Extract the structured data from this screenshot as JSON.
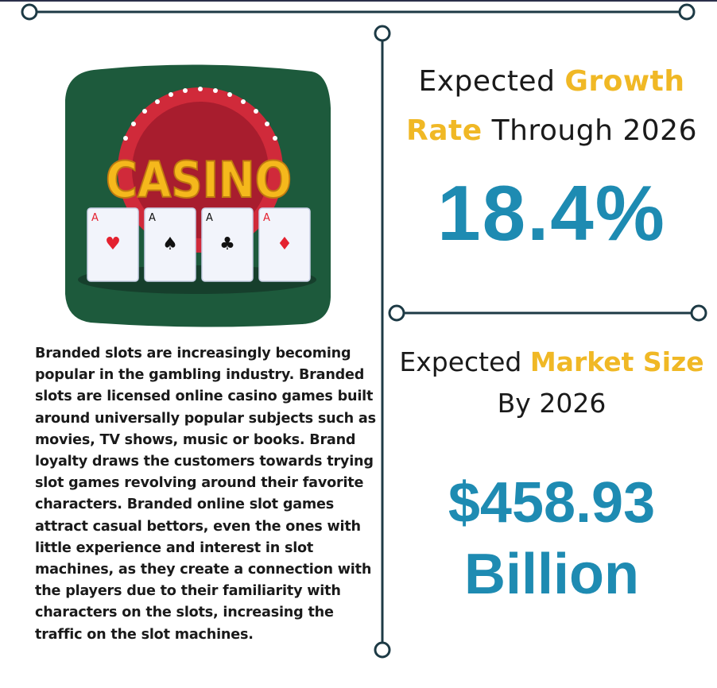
{
  "logo": {
    "text": "CASINO",
    "cards": [
      {
        "rank": "A",
        "suit": "heart-icon",
        "color": "#e4212f"
      },
      {
        "rank": "A",
        "suit": "spade-icon",
        "color": "#111111"
      },
      {
        "rank": "A",
        "suit": "club-icon",
        "color": "#111111"
      },
      {
        "rank": "A",
        "suit": "diamond-icon",
        "color": "#e4212f"
      }
    ]
  },
  "description": "Branded slots are increasingly becoming popular in the gambling industry. Branded slots are licensed online casino games built around universally popular subjects such as movies, TV shows, music or books. Brand loyalty draws the customers towards trying slot games revolving around their favorite characters. Branded online slot games attract casual bettors, even the ones with little experience and interest in slot machines, as they create a connection with the players due to their familiarity with characters on the slots, increasing the traffic on the slot machines.",
  "growth": {
    "heading_pre": "Expected ",
    "heading_accent_1": "Growth",
    "heading_accent_2": "Rate",
    "heading_post": " Through 2026",
    "value": "18.4%"
  },
  "market": {
    "heading_pre": "Expected ",
    "heading_accent": "Market Size",
    "heading_post": "By 2026",
    "value_line1": "$458.93",
    "value_line2": "Billion"
  },
  "colors": {
    "accent": "#f0b825",
    "stat": "#1e8bb2",
    "line": "#1d3a45",
    "felt": "#1d5a3c",
    "sign_red": "#d02a3a"
  }
}
